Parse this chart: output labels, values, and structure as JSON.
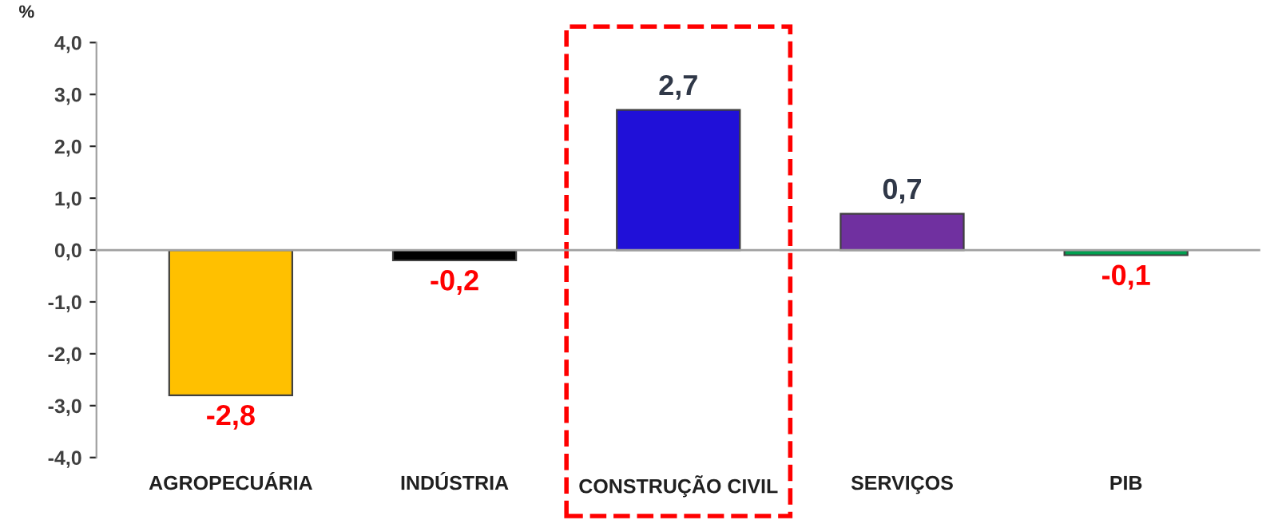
{
  "chart_data": {
    "type": "bar",
    "ylabel": "%",
    "categories": [
      "AGROPECUÁRIA",
      "INDÚSTRIA",
      "CONSTRUÇÃO CIVIL",
      "SERVIÇOS",
      "PIB"
    ],
    "values": [
      -2.8,
      -0.2,
      2.7,
      0.7,
      -0.1
    ],
    "colors": [
      "#ffc000",
      "#000000",
      "#2010d8",
      "#7030a0",
      "#00a050"
    ],
    "value_labels": [
      "-2,8",
      "-0,2",
      "2,7",
      "0,7",
      "-0,1"
    ],
    "ylim": [
      -4,
      4
    ],
    "yticks": [
      {
        "value": -4,
        "label": "-4,0"
      },
      {
        "value": -3,
        "label": "-3,0"
      },
      {
        "value": -2,
        "label": "-2,0"
      },
      {
        "value": -1,
        "label": "-1,0"
      },
      {
        "value": 0,
        "label": "0,0"
      },
      {
        "value": 1,
        "label": "1,0"
      },
      {
        "value": 2,
        "label": "2,0"
      },
      {
        "value": 3,
        "label": "3,0"
      },
      {
        "value": 4,
        "label": "4,0"
      }
    ],
    "legend": false
  }
}
